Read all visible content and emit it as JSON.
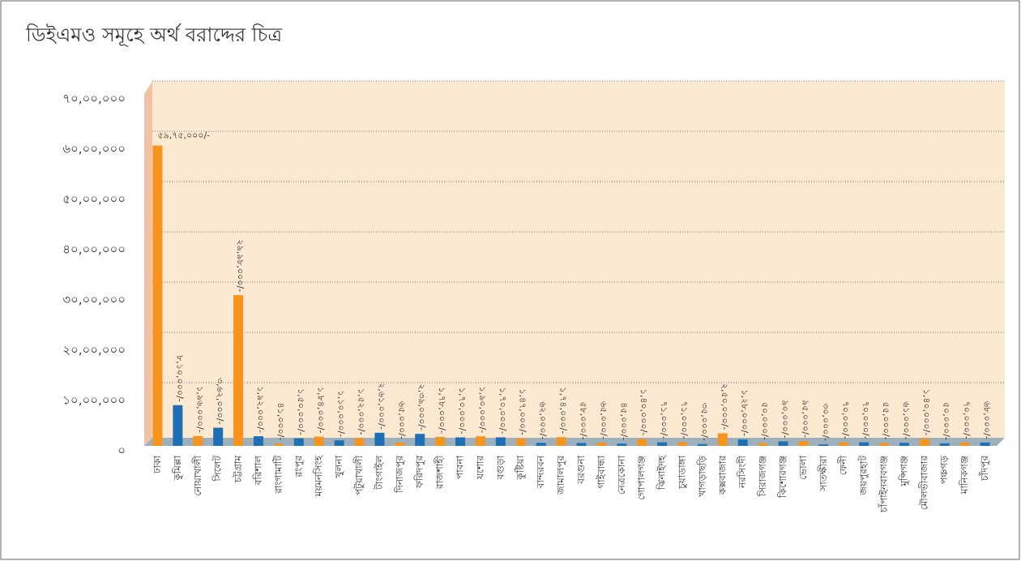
{
  "chart_data": {
    "type": "bar",
    "title": "ডিইএমও সমূহে অর্থ বরাদ্দের চিত্র",
    "categories": [
      "ঢাকা",
      "কুমিল্লা",
      "নোয়াখালী",
      "সিলেট",
      "চট্টগ্রাম",
      "বরিশাল",
      "রাংগামাটি",
      "রংপুর",
      "ময়মনসিংহ",
      "খুলনা",
      "পটুয়াখালী",
      "টাংগাইল",
      "দিনাজপুর",
      "ফরিদপুর",
      "রাজশাহী",
      "পাবনা",
      "যশোর",
      "বগুড়া",
      "কুষ্টিয়া",
      "বান্দরবন",
      "জামালপুর",
      "বরগুনা",
      "গাইবান্ধা",
      "নেত্রকোনা",
      "গোপালগঞ্জ",
      "ঝিনাইদহ",
      "চুয়াডাঙ্গা",
      "খাগড়াছড়ি",
      "কক্সবাজার",
      "নরসিংদী",
      "সিরাজগঞ্জ",
      "কিশোরগঞ্জ",
      "ভোলা",
      "সাতক্ষীরা",
      "ফেনী",
      "জয়পুরহাট",
      "চাঁপাইনবাবগঞ্জ",
      "মুন্সিগঞ্জ",
      "মৌলভীবাজার",
      "পঞ্চগড়",
      "মানিকগঞ্জ",
      "চাঁদপুর"
    ],
    "values": [
      5975000,
      810000,
      196000,
      362000,
      2998000,
      192000,
      41000,
      150000,
      184000,
      110000,
      152000,
      261000,
      65000,
      239000,
      178000,
      170000,
      190000,
      170000,
      147000,
      62000,
      174000,
      58000,
      65000,
      45000,
      140000,
      71000,
      71000,
      35000,
      250000,
      128000,
      50000,
      90000,
      95000,
      30000,
      70000,
      70000,
      55000,
      61000,
      140000,
      50000,
      70000,
      68000
    ],
    "value_labels": [
      "৫৯,৭৫,০০০/-",
      "৮,১০,০০০/-",
      "১,৯৬,০০০/-",
      "৩,৬২,০০০/-",
      "২৯,৯৮,০০০/-",
      "১,৯২,০০০/-",
      "৪১,০০০/-",
      "১,৫০,০০০/-",
      "১,৮৪,০০০/-",
      "১,১০,০০০/-",
      "১,৫২,০০০/-",
      "২,৬১,০০০/-",
      "৬৫,০০০/-",
      "২,৩৯,০০০/-",
      "১,৭৮,০০০/-",
      "১,৭০,০০০/-",
      "১,৯০,০০০/-",
      "১,৭০,০০০/-",
      "১,৪৭,০০০/-",
      "৬২,০০০/-",
      "১,৭৪,০০০/-",
      "৫৮,০০০/-",
      "৬৫,০০০/-",
      "৪৫,০০০/-",
      "১,৪০,০০০/-",
      "৭১,০০০/-",
      "৭১,০০০/-",
      "৩৫,০০০/-",
      "২,৫০,০০০/-",
      "১,২৮,০০০/-",
      "৫০,০০০/-",
      "৯০,০০০/-",
      "৯৫,০০০/-",
      "৩০,০০০/-",
      "৭০,০০০/-",
      "৭০,০০০/-",
      "৫৫,০০০/-",
      "৬১,০০০/-",
      "১,৪০,০০০/-",
      "৫০,০০০/-",
      "৭০,০০০/-",
      "৬৮,০০০/-"
    ],
    "colors": [
      "#f7941d",
      "#1f6fb5",
      "#f7941d",
      "#1f6fb5",
      "#f7941d",
      "#1f6fb5",
      "#f7941d",
      "#1f6fb5",
      "#f7941d",
      "#1f6fb5",
      "#f7941d",
      "#1f6fb5",
      "#f7941d",
      "#1f6fb5",
      "#f7941d",
      "#1f6fb5",
      "#f7941d",
      "#1f6fb5",
      "#f7941d",
      "#1f6fb5",
      "#f7941d",
      "#1f6fb5",
      "#f7941d",
      "#1f6fb5",
      "#f7941d",
      "#1f6fb5",
      "#f7941d",
      "#1f6fb5",
      "#f7941d",
      "#1f6fb5",
      "#f7941d",
      "#1f6fb5",
      "#f7941d",
      "#1f6fb5",
      "#f7941d",
      "#1f6fb5",
      "#f7941d",
      "#1f6fb5",
      "#f7941d",
      "#1f6fb5",
      "#f7941d",
      "#1f6fb5"
    ],
    "ylim": [
      0,
      7000000
    ],
    "yticks": [
      {
        "value": 0,
        "label": "০"
      },
      {
        "value": 1000000,
        "label": "১০,০০,০০০"
      },
      {
        "value": 2000000,
        "label": "২০,০০,০০০"
      },
      {
        "value": 3000000,
        "label": "৩০,০০,০০০"
      },
      {
        "value": 4000000,
        "label": "৪০,০০,০০০"
      },
      {
        "value": 5000000,
        "label": "৫০,০০,০০০"
      },
      {
        "value": 6000000,
        "label": "৬০,০০,০০০"
      },
      {
        "value": 7000000,
        "label": "৭০,০০,০০০"
      }
    ],
    "grid": true
  }
}
